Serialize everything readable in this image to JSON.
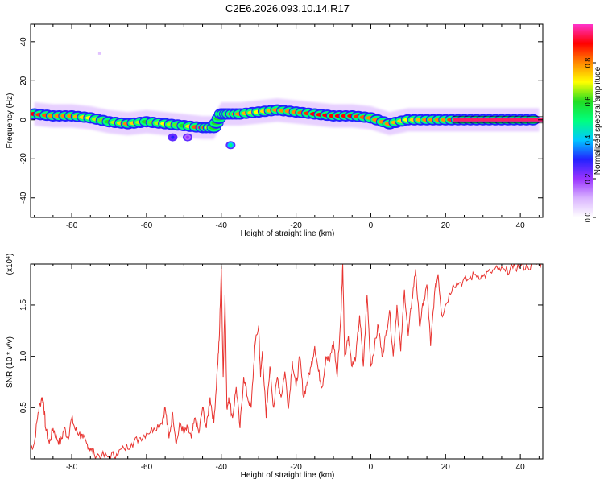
{
  "figure": {
    "title": "C2E6.2026.093.10.14.R17"
  },
  "colorbar": {
    "label": "Normalized spectral amplitude",
    "ticks": [
      "0.0",
      "0.2",
      "0.4",
      "0.6",
      "0.8"
    ]
  },
  "colors": {
    "snr_line": "#e8332f",
    "colormap": [
      "#ffffff",
      "#d9b3ff",
      "#9933ff",
      "#2222ff",
      "#00c8ff",
      "#00ff7f",
      "#22dd22",
      "#ffff00",
      "#ff8800",
      "#ff0000",
      "#ff33cc"
    ]
  },
  "chart_data": [
    {
      "type": "heatmap",
      "title": "C2E6.2026.093.10.14.R17",
      "xlabel": "Height of straight line (km)",
      "ylabel": "Frequency (Hz)",
      "xlim": [
        -91,
        46
      ],
      "ylim": [
        -50,
        49
      ],
      "x_ticks": [
        -80,
        -60,
        -40,
        -20,
        0,
        20,
        40
      ],
      "y_ticks": [
        -40,
        -20,
        0,
        20,
        40
      ],
      "colorbar_label": "Normalized spectral amplitude",
      "colorbar_range": [
        0,
        1
      ],
      "ridge": {
        "x": [
          -90,
          -85,
          -80,
          -75,
          -70,
          -65,
          -60,
          -55,
          -50,
          -45,
          -42,
          -40,
          -38,
          -35,
          -30,
          -25,
          -20,
          -15,
          -10,
          -5,
          0,
          5,
          10,
          15,
          20,
          25,
          30,
          35,
          40,
          45
        ],
        "frequency": [
          3,
          2,
          2,
          1,
          -1,
          -2,
          -1,
          -2,
          -3,
          -4,
          -4,
          3,
          3,
          3,
          4,
          5,
          4,
          3,
          2,
          2,
          1,
          -2,
          0,
          0,
          0,
          0,
          0,
          0,
          0,
          0
        ],
        "amplitude": [
          0.9,
          0.8,
          0.8,
          0.7,
          0.6,
          0.8,
          0.6,
          0.7,
          0.6,
          0.95,
          0.6,
          0.6,
          0.8,
          0.8,
          0.7,
          0.8,
          0.8,
          0.9,
          0.9,
          0.9,
          0.8,
          0.8,
          0.7,
          0.8,
          0.8,
          0.95,
          0.95,
          0.95,
          0.95,
          0.95
        ]
      },
      "blobs": [
        {
          "x": -37.5,
          "frequency": -13,
          "amplitude": 0.5
        },
        {
          "x": -53,
          "frequency": -9,
          "amplitude": 0.3
        },
        {
          "x": -49,
          "frequency": -9,
          "amplitude": 0.2
        },
        {
          "x": -72.5,
          "frequency": 34,
          "amplitude": 0.05
        }
      ]
    },
    {
      "type": "line",
      "xlabel": "Height of straight line (km)",
      "ylabel": "SNR (10 * v/v)",
      "y_multiplier": "(x10^4)",
      "xlim": [
        -91,
        46
      ],
      "ylim": [
        0,
        1.9
      ],
      "x_ticks": [
        -80,
        -60,
        -40,
        -20,
        0,
        20,
        40
      ],
      "y_ticks": [
        0.5,
        1.0,
        1.5
      ],
      "series": [
        {
          "x": [
            -91,
            -90,
            -89,
            -88,
            -87.5,
            -87,
            -86,
            -85,
            -84,
            -83,
            -82,
            -81,
            -80,
            -79,
            -78,
            -77,
            -76,
            -75,
            -74,
            -72,
            -70,
            -68,
            -66,
            -64,
            -62,
            -60,
            -58,
            -56,
            -55,
            -54,
            -53,
            -52,
            -51,
            -50,
            -49,
            -48,
            -47,
            -46,
            -45,
            -44,
            -43,
            -42,
            -41,
            -40.5,
            -40,
            -39.5,
            -39,
            -38.5,
            -38,
            -37,
            -36,
            -35,
            -34,
            -33,
            -32,
            -31,
            -30,
            -29.5,
            -29,
            -28,
            -27,
            -26,
            -25,
            -24,
            -23,
            -22,
            -21,
            -20,
            -19,
            -18,
            -17,
            -16,
            -15,
            -14,
            -13,
            -12,
            -11,
            -10,
            -9,
            -8,
            -7.5,
            -7,
            -6,
            -5,
            -4,
            -3,
            -2,
            -1,
            0,
            1,
            2,
            3,
            4,
            5,
            6,
            7,
            8,
            9,
            10,
            11,
            12,
            13,
            14,
            15,
            16,
            17,
            18,
            19,
            20,
            22,
            24,
            26,
            28,
            30,
            32,
            34,
            36,
            38,
            40,
            42,
            44,
            46
          ],
          "y": [
            0.1,
            0.15,
            0.45,
            0.6,
            0.55,
            0.3,
            0.15,
            0.3,
            0.2,
            0.15,
            0.3,
            0.2,
            0.4,
            0.28,
            0.25,
            0.2,
            0.15,
            0.1,
            0.05,
            0.03,
            0.02,
            0.05,
            0.1,
            0.15,
            0.2,
            0.25,
            0.3,
            0.35,
            0.5,
            0.2,
            0.45,
            0.15,
            0.35,
            0.25,
            0.3,
            0.2,
            0.4,
            0.25,
            0.5,
            0.3,
            0.6,
            0.35,
            0.9,
            1.2,
            1.88,
            0.8,
            1.6,
            0.5,
            0.6,
            0.4,
            0.7,
            0.3,
            0.8,
            0.6,
            0.5,
            1.1,
            1.3,
            0.8,
            1.05,
            0.4,
            0.9,
            0.5,
            0.8,
            0.6,
            0.85,
            0.5,
            0.95,
            0.7,
            1.0,
            0.6,
            0.75,
            0.9,
            1.1,
            0.85,
            0.7,
            1.0,
            0.95,
            1.15,
            0.8,
            1.4,
            1.9,
            1.0,
            1.2,
            0.9,
            1.0,
            1.4,
            0.9,
            1.6,
            0.9,
            1.1,
            1.3,
            1.0,
            1.2,
            1.45,
            1.0,
            1.5,
            1.05,
            1.65,
            1.2,
            1.55,
            1.85,
            1.3,
            1.5,
            1.7,
            1.1,
            1.6,
            1.8,
            1.4,
            1.5,
            1.7,
            1.72,
            1.75,
            1.8,
            1.78,
            1.82,
            1.85,
            1.83,
            1.86,
            1.88,
            1.87,
            1.9,
            1.9
          ]
        }
      ]
    }
  ]
}
